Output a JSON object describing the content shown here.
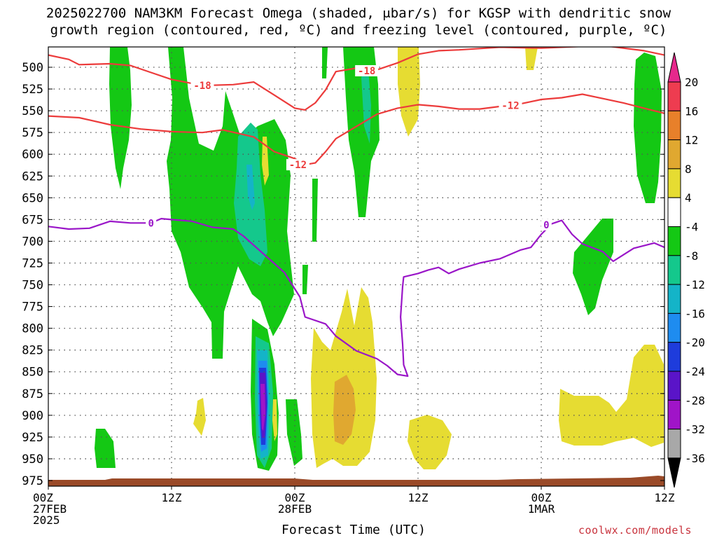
{
  "title_line1": "2025022700 NAM3KM Forecast Omega (shaded, μbar/s) for KGSP with dendritic snow",
  "title_line2": "growth region (contoured, red, ºC) and freezing level (contoured, purple, ºC)",
  "credit": "coolwx.com/models",
  "colors": {
    "snow_contour": "#ec3b3b",
    "freezing_contour": "#9a16c8",
    "terrain": "#9a4a28",
    "grid": "#555555"
  },
  "chart_data": {
    "type": "heatmap",
    "title": "2025022700 NAM3KM Forecast Omega (shaded, μbar/s) for KGSP with dendritic snow growth region (contoured, red, ºC) and freezing level (contoured, purple, ºC)",
    "xlabel": "Forecast Time (UTC)",
    "ylabel": "",
    "x_range_hours": [
      0,
      60
    ],
    "y_range_mb": [
      475,
      985
    ],
    "y_ticks": [
      500,
      525,
      550,
      575,
      600,
      625,
      650,
      675,
      700,
      725,
      750,
      775,
      800,
      825,
      850,
      875,
      900,
      925,
      950,
      975
    ],
    "x_ticks": [
      {
        "hour": 0,
        "lines": [
          "00Z",
          "27FEB",
          "2025"
        ]
      },
      {
        "hour": 12,
        "lines": [
          "12Z"
        ]
      },
      {
        "hour": 24,
        "lines": [
          "00Z",
          "28FEB"
        ]
      },
      {
        "hour": 36,
        "lines": [
          "12Z"
        ]
      },
      {
        "hour": 48,
        "lines": [
          "00Z",
          "1MAR"
        ]
      },
      {
        "hour": 60,
        "lines": [
          "12Z"
        ]
      }
    ],
    "grid": true,
    "colorbar": {
      "labels": [
        "20",
        "16",
        "12",
        "8",
        "4",
        "-4",
        "-8",
        "-12",
        "-16",
        "-20",
        "-24",
        "-28",
        "-32",
        "-36"
      ],
      "bins": [
        {
          "from": 16,
          "to": 20,
          "color": "#ee3c50"
        },
        {
          "from": 12,
          "to": 16,
          "color": "#e8802a"
        },
        {
          "from": 8,
          "to": 12,
          "color": "#e0a830"
        },
        {
          "from": 4,
          "to": 8,
          "color": "#e6dc32"
        },
        {
          "from": -4,
          "to": 4,
          "color": "#ffffff"
        },
        {
          "from": -8,
          "to": -4,
          "color": "#14c814"
        },
        {
          "from": -12,
          "to": -8,
          "color": "#14c88c"
        },
        {
          "from": -16,
          "to": -12,
          "color": "#14b4c8"
        },
        {
          "from": -20,
          "to": -16,
          "color": "#1e8cf0"
        },
        {
          "from": -24,
          "to": -20,
          "color": "#1e3cdc"
        },
        {
          "from": -28,
          "to": -24,
          "color": "#5a14c8"
        },
        {
          "from": -32,
          "to": -28,
          "color": "#a014c8"
        },
        {
          "from": -36,
          "to": -32,
          "color": "#a8a8a8"
        }
      ],
      "over_color": "#e6288c",
      "under_color": "#000000"
    },
    "series": [
      {
        "name": "-18",
        "label_at": [
          15,
          521
        ],
        "points": [
          [
            0,
            486
          ],
          [
            2,
            491
          ],
          [
            3,
            497
          ],
          [
            6,
            496
          ],
          [
            8,
            498
          ],
          [
            10,
            506
          ],
          [
            12,
            514
          ],
          [
            15,
            521
          ],
          [
            18,
            520
          ],
          [
            20,
            517
          ],
          [
            22,
            532
          ],
          [
            24,
            547
          ],
          [
            25,
            549
          ],
          [
            26,
            541
          ],
          [
            27,
            526
          ],
          [
            28,
            505
          ],
          [
            30,
            501
          ],
          [
            32,
            503
          ],
          [
            34,
            495
          ],
          [
            36,
            485
          ],
          [
            38,
            481
          ],
          [
            40,
            480
          ],
          [
            44,
            477
          ],
          [
            48,
            478
          ],
          [
            54,
            475
          ],
          [
            58,
            481
          ],
          [
            60,
            486
          ]
        ]
      },
      {
        "name": "-18",
        "label_at": [
          31,
          504
        ],
        "points": []
      },
      {
        "name": "-12",
        "label_at": [
          45,
          544
        ],
        "points": [
          [
            0,
            556
          ],
          [
            3,
            558
          ],
          [
            6,
            566
          ],
          [
            9,
            571
          ],
          [
            12,
            574
          ],
          [
            15,
            575
          ],
          [
            17,
            572
          ],
          [
            20,
            580
          ],
          [
            22,
            597
          ],
          [
            24,
            605
          ],
          [
            25,
            612
          ],
          [
            26,
            610
          ],
          [
            27,
            597
          ],
          [
            28,
            582
          ],
          [
            30,
            568
          ],
          [
            32,
            554
          ],
          [
            34,
            547
          ],
          [
            36,
            543
          ],
          [
            38,
            545
          ],
          [
            40,
            548
          ],
          [
            42,
            548
          ],
          [
            44,
            545
          ],
          [
            46,
            542
          ],
          [
            48,
            537
          ],
          [
            50,
            535
          ],
          [
            52,
            531
          ],
          [
            54,
            536
          ],
          [
            56,
            541
          ],
          [
            58,
            547
          ],
          [
            60,
            553
          ]
        ]
      },
      {
        "name": "-12",
        "label_at": [
          24.3,
          612
        ],
        "points": []
      },
      {
        "name": "0",
        "label_at": [
          10,
          679
        ],
        "points": [
          [
            0,
            683
          ],
          [
            2,
            686
          ],
          [
            4,
            685
          ],
          [
            6,
            677
          ],
          [
            8,
            679
          ],
          [
            10,
            679
          ],
          [
            11,
            674
          ],
          [
            14,
            677
          ],
          [
            16,
            684
          ],
          [
            18,
            686
          ],
          [
            19,
            694
          ],
          [
            21,
            715
          ],
          [
            23,
            736
          ],
          [
            24.5,
            764
          ],
          [
            25,
            787
          ],
          [
            27,
            795
          ],
          [
            28,
            809
          ],
          [
            30,
            826
          ],
          [
            32,
            835
          ],
          [
            33,
            843
          ],
          [
            34,
            853
          ],
          [
            35,
            855
          ],
          [
            34.6,
            842
          ],
          [
            34.5,
            818
          ],
          [
            34.3,
            787
          ],
          [
            34.5,
            752
          ],
          [
            34.6,
            741
          ],
          [
            36,
            737
          ],
          [
            37,
            733
          ],
          [
            38,
            730
          ],
          [
            39,
            737
          ],
          [
            40,
            732
          ],
          [
            42,
            725
          ],
          [
            44,
            720
          ],
          [
            46,
            710
          ],
          [
            47,
            707
          ],
          [
            48,
            692
          ],
          [
            49,
            680
          ],
          [
            50,
            676
          ],
          [
            51,
            692
          ],
          [
            52,
            703
          ],
          [
            54,
            712
          ],
          [
            55,
            723
          ],
          [
            57,
            708
          ],
          [
            59,
            702
          ],
          [
            60,
            707
          ]
        ]
      },
      {
        "name": "0",
        "label_at": [
          48.5,
          681
        ],
        "points": []
      }
    ]
  }
}
